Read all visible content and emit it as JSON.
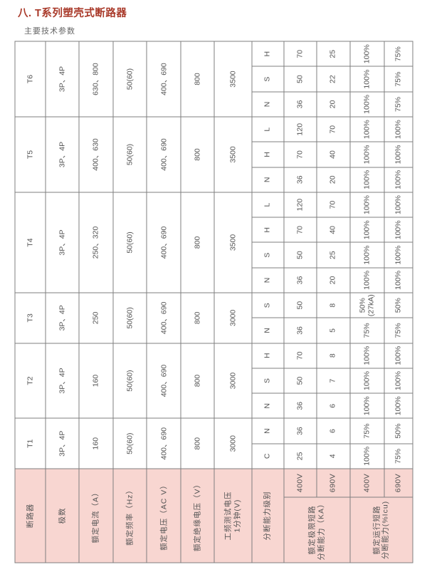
{
  "page": {
    "title": "八. T系列塑壳式断路器",
    "subtitle": "主要技术参数",
    "title_color": "#a93a2a",
    "pink_color": "#f8d6d1",
    "border_color": "#7f7f7f"
  },
  "table": {
    "row_labels": {
      "model": "断路器",
      "poles": "极数",
      "current": "额定电流（A）",
      "frequency": "额定频率（Hz）",
      "voltage": "额定电压（AC V）",
      "insulation": "额定绝缘电压（V）",
      "test_voltage": "工频测试电压\n1分钟(V)",
      "level": "分断能力级别",
      "ultimate": "额定极限短路\n分断能力（KA）",
      "service": "额定运行短路\n分断能力(%Icu)",
      "v400": "400V",
      "v690": "690V"
    },
    "breakers": [
      {
        "model": "T1",
        "poles": "3P、4P",
        "current": "160",
        "frequency": "50(60)",
        "voltage": "400、690",
        "insulation": "800",
        "test_voltage": "3000",
        "levels": [
          {
            "level": "C",
            "icu400": "25",
            "icu690": "4",
            "ics400": "100%",
            "ics690": "75%"
          },
          {
            "level": "N",
            "icu400": "36",
            "icu690": "6",
            "ics400": "75%",
            "ics690": "50%"
          }
        ]
      },
      {
        "model": "T2",
        "poles": "3P、4P",
        "current": "160",
        "frequency": "50(60)",
        "voltage": "400、690",
        "insulation": "800",
        "test_voltage": "3000",
        "levels": [
          {
            "level": "N",
            "icu400": "36",
            "icu690": "6",
            "ics400": "100%",
            "ics690": "100%"
          },
          {
            "level": "S",
            "icu400": "50",
            "icu690": "7",
            "ics400": "100%",
            "ics690": "100%"
          },
          {
            "level": "H",
            "icu400": "70",
            "icu690": "8",
            "ics400": "100%",
            "ics690": "100%"
          }
        ]
      },
      {
        "model": "T3",
        "poles": "3P、4P",
        "current": "250",
        "frequency": "50(60)",
        "voltage": "400、690",
        "insulation": "800",
        "test_voltage": "3000",
        "levels": [
          {
            "level": "N",
            "icu400": "36",
            "icu690": "5",
            "ics400": "75%",
            "ics690": "75%"
          },
          {
            "level": "S",
            "icu400": "50",
            "icu690": "8",
            "ics400": "50%\n(27kA)",
            "ics690": "50%"
          }
        ]
      },
      {
        "model": "T4",
        "poles": "3P、4P",
        "current": "250、320",
        "frequency": "50(60)",
        "voltage": "400、690",
        "insulation": "800",
        "test_voltage": "3500",
        "levels": [
          {
            "level": "N",
            "icu400": "36",
            "icu690": "20",
            "ics400": "100%",
            "ics690": "100%"
          },
          {
            "level": "S",
            "icu400": "50",
            "icu690": "25",
            "ics400": "100%",
            "ics690": "100%"
          },
          {
            "level": "H",
            "icu400": "70",
            "icu690": "40",
            "ics400": "100%",
            "ics690": "100%"
          },
          {
            "level": "L",
            "icu400": "120",
            "icu690": "70",
            "ics400": "100%",
            "ics690": "100%"
          }
        ]
      },
      {
        "model": "T5",
        "poles": "3P、4P",
        "current": "400、630",
        "frequency": "50(60)",
        "voltage": "400、690",
        "insulation": "800",
        "test_voltage": "3500",
        "levels": [
          {
            "level": "N",
            "icu400": "36",
            "icu690": "20",
            "ics400": "100%",
            "ics690": "100%"
          },
          {
            "level": "H",
            "icu400": "70",
            "icu690": "40",
            "ics400": "100%",
            "ics690": "100%"
          },
          {
            "level": "L",
            "icu400": "120",
            "icu690": "70",
            "ics400": "100%",
            "ics690": "100%"
          }
        ]
      },
      {
        "model": "T6",
        "poles": "3P、4P",
        "current": "630、800",
        "frequency": "50(60)",
        "voltage": "400、690",
        "insulation": "800",
        "test_voltage": "3500",
        "levels": [
          {
            "level": "N",
            "icu400": "36",
            "icu690": "20",
            "ics400": "100%",
            "ics690": "75%"
          },
          {
            "level": "S",
            "icu400": "50",
            "icu690": "22",
            "ics400": "100%",
            "ics690": "75%"
          },
          {
            "level": "H",
            "icu400": "70",
            "icu690": "25",
            "ics400": "100%",
            "ics690": "75%"
          }
        ]
      }
    ]
  }
}
